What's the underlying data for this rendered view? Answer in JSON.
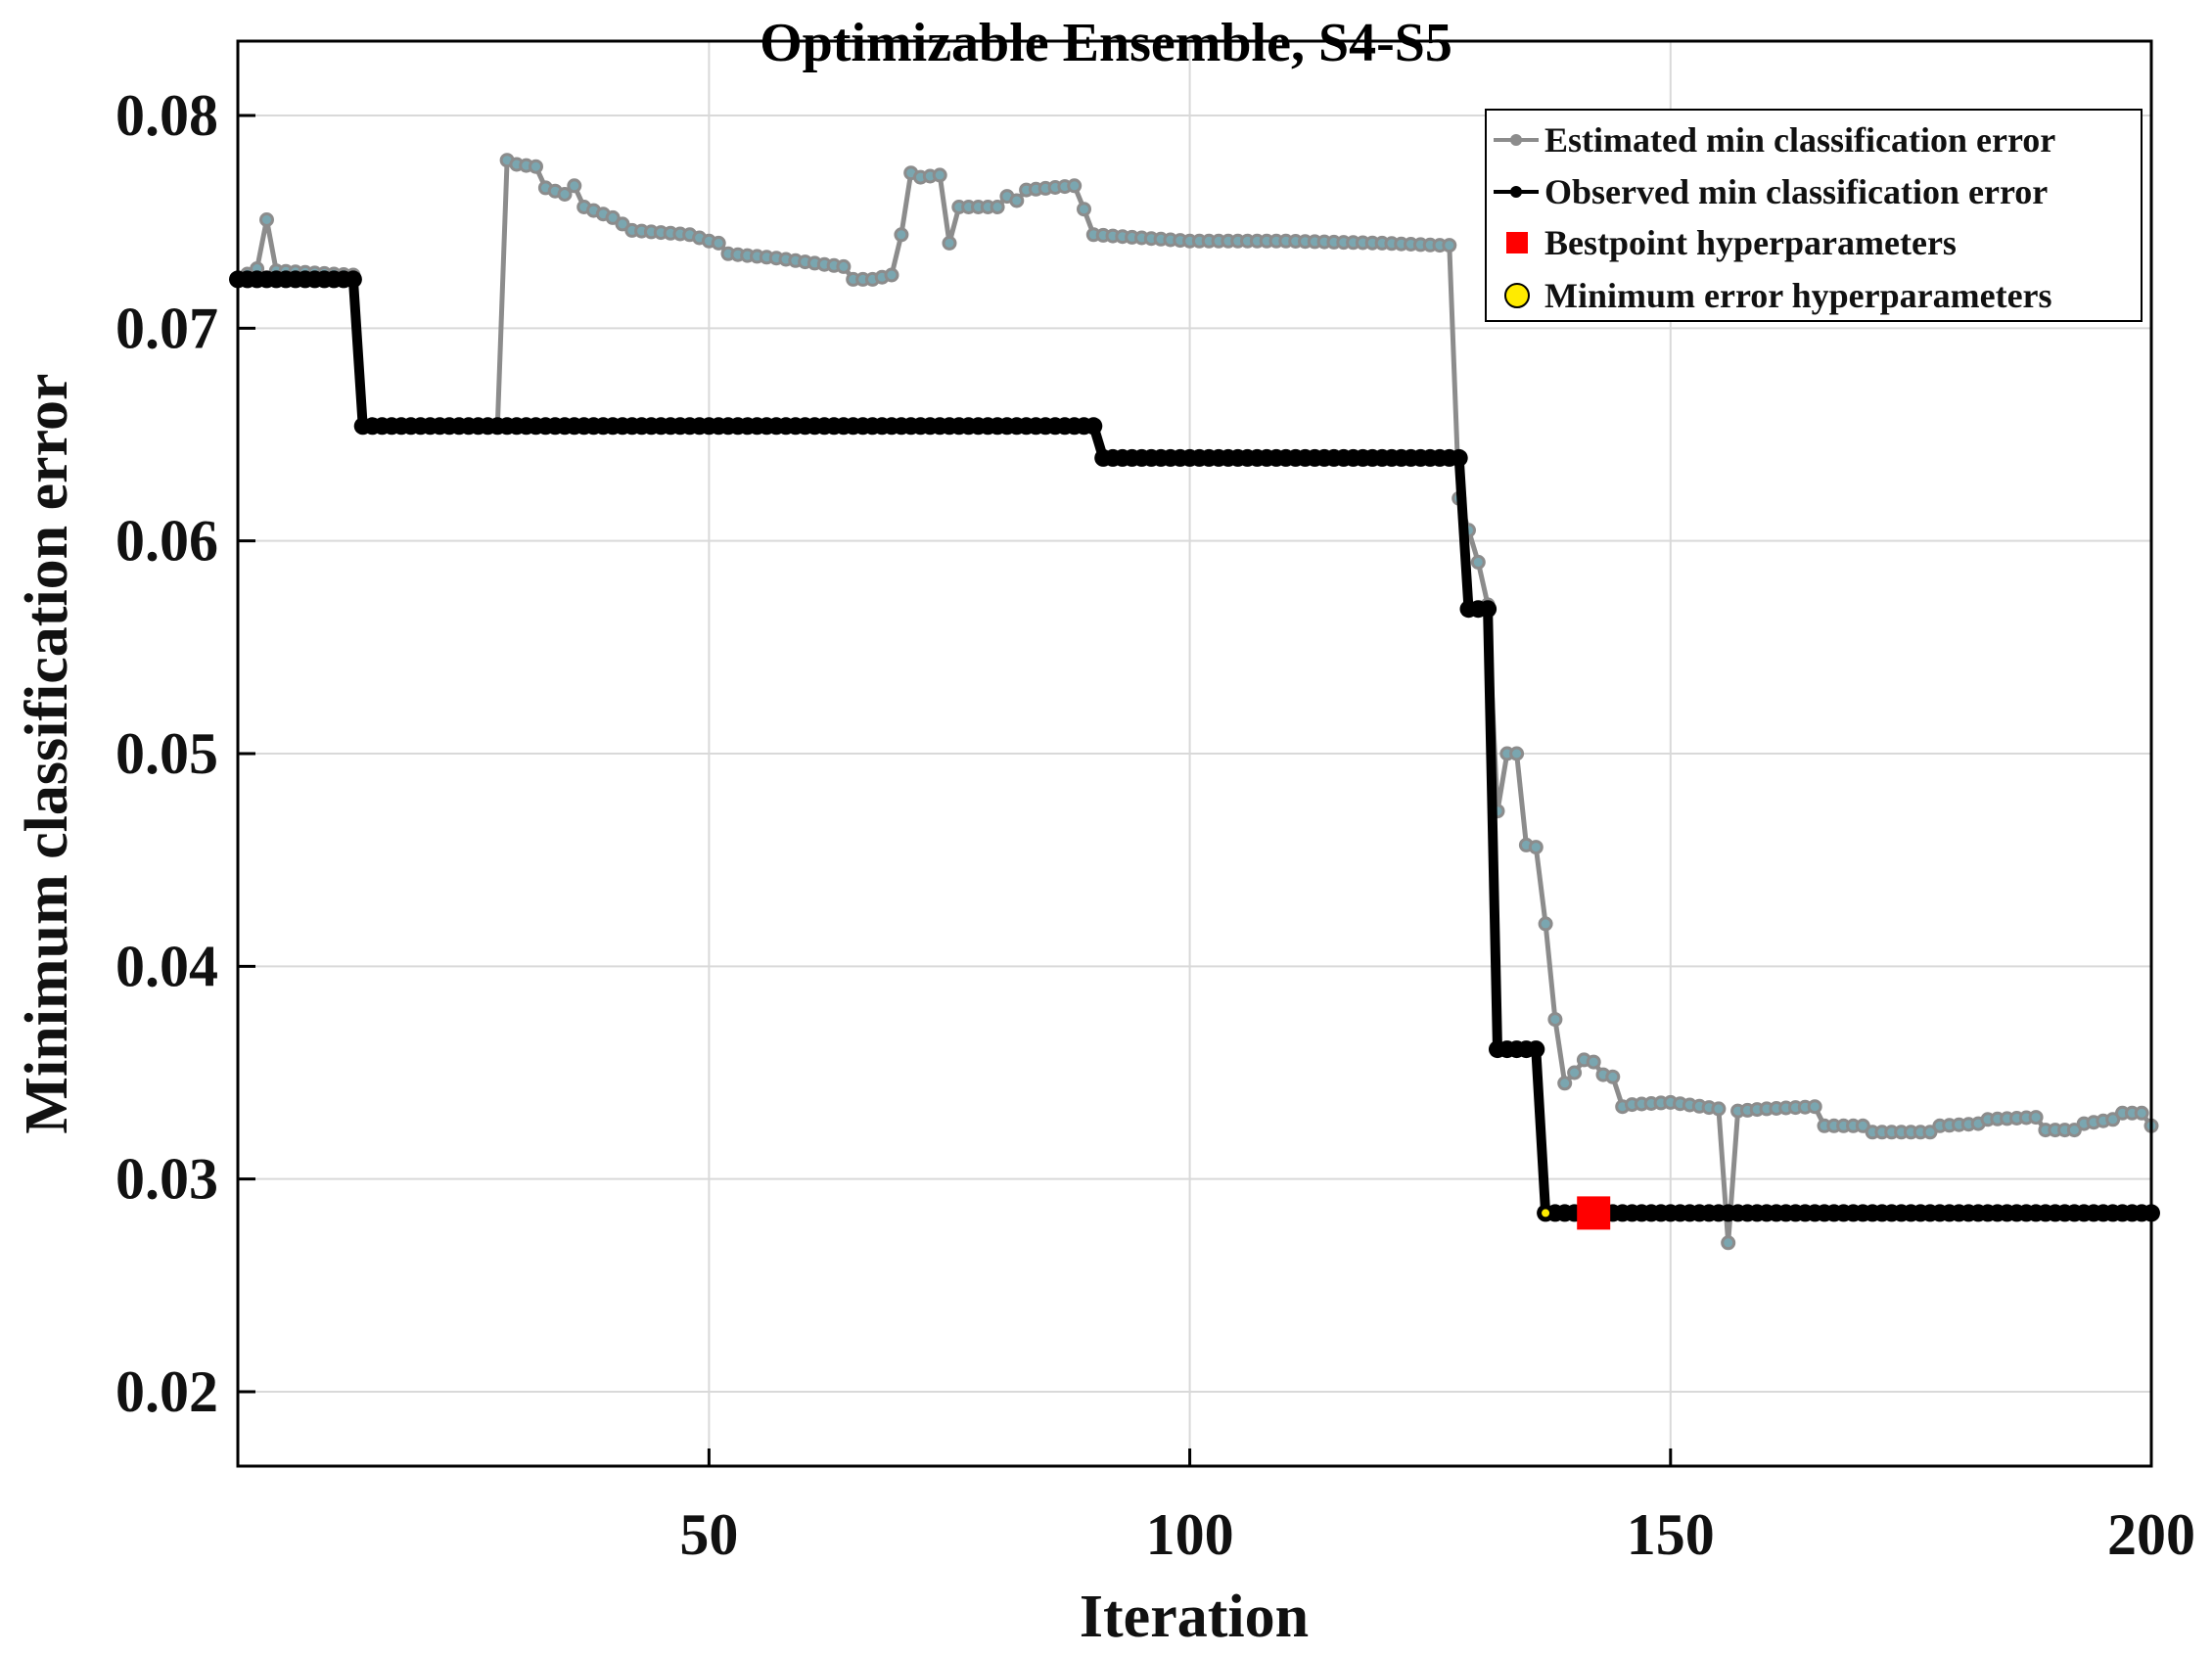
{
  "chart_data": {
    "type": "line",
    "title": "Optimizable Ensemble, S4-S5",
    "xlabel": "Iteration",
    "ylabel": "Minimum classification error",
    "xlim": [
      1,
      200
    ],
    "ylim": [
      0.0165,
      0.0835
    ],
    "xticks": [
      50,
      100,
      150,
      200
    ],
    "yticks": [
      0.02,
      0.03,
      0.04,
      0.05,
      0.06,
      0.07,
      0.08
    ],
    "xtick_labels": [
      "50",
      "100",
      "150",
      "200"
    ],
    "ytick_labels": [
      "0.02",
      "0.03",
      "0.04",
      "0.05",
      "0.06",
      "0.07",
      "0.08"
    ],
    "grid": true,
    "legend_position": "top-right",
    "colors": {
      "estimated": "#8c8c8c",
      "estimated_marker": "#7aa6b0",
      "observed": "#000000",
      "bestpoint": "#ff0000",
      "minimum": "#ffeb00"
    },
    "series": [
      {
        "name": "Estimated min classification error",
        "keypoints": [
          [
            1,
            0.0723
          ],
          [
            3,
            0.0728
          ],
          [
            4,
            0.0751
          ],
          [
            5,
            0.0727
          ],
          [
            13,
            0.0725
          ],
          [
            14,
            0.0654
          ],
          [
            28,
            0.0654
          ],
          [
            29,
            0.0779
          ],
          [
            30,
            0.0777
          ],
          [
            32,
            0.0776
          ],
          [
            33,
            0.0766
          ],
          [
            35,
            0.0763
          ],
          [
            36,
            0.0767
          ],
          [
            37,
            0.0757
          ],
          [
            40,
            0.0752
          ],
          [
            42,
            0.0746
          ],
          [
            48,
            0.0744
          ],
          [
            50,
            0.0741
          ],
          [
            51,
            0.074
          ],
          [
            52,
            0.0735
          ],
          [
            57,
            0.0733
          ],
          [
            62,
            0.073
          ],
          [
            64,
            0.0729
          ],
          [
            65,
            0.0723
          ],
          [
            67,
            0.0723
          ],
          [
            69,
            0.0725
          ],
          [
            70,
            0.0744
          ],
          [
            71,
            0.0773
          ],
          [
            72,
            0.0771
          ],
          [
            74,
            0.0772
          ],
          [
            75,
            0.074
          ],
          [
            76,
            0.0757
          ],
          [
            80,
            0.0757
          ],
          [
            81,
            0.0762
          ],
          [
            82,
            0.076
          ],
          [
            83,
            0.0765
          ],
          [
            88,
            0.0767
          ],
          [
            89,
            0.0756
          ],
          [
            90,
            0.0744
          ],
          [
            100,
            0.0741
          ],
          [
            110,
            0.0741
          ],
          [
            120,
            0.074
          ],
          [
            126,
            0.0739
          ],
          [
            127,
            0.0739
          ],
          [
            128,
            0.062
          ],
          [
            129,
            0.0605
          ],
          [
            130,
            0.059
          ],
          [
            131,
            0.057
          ],
          [
            132,
            0.0473
          ],
          [
            133,
            0.05
          ],
          [
            134,
            0.05
          ],
          [
            135,
            0.0457
          ],
          [
            136,
            0.0456
          ],
          [
            137,
            0.042
          ],
          [
            138,
            0.0375
          ],
          [
            139,
            0.0345
          ],
          [
            140,
            0.035
          ],
          [
            141,
            0.0356
          ],
          [
            142,
            0.0355
          ],
          [
            143,
            0.0349
          ],
          [
            144,
            0.0348
          ],
          [
            145,
            0.0334
          ],
          [
            146,
            0.0335
          ],
          [
            150,
            0.0336
          ],
          [
            155,
            0.0333
          ],
          [
            156,
            0.027
          ],
          [
            157,
            0.0332
          ],
          [
            160,
            0.0333
          ],
          [
            165,
            0.0334
          ],
          [
            166,
            0.0325
          ],
          [
            170,
            0.0325
          ],
          [
            171,
            0.0322
          ],
          [
            177,
            0.0322
          ],
          [
            178,
            0.0325
          ],
          [
            182,
            0.0326
          ],
          [
            183,
            0.0328
          ],
          [
            188,
            0.0329
          ],
          [
            189,
            0.0323
          ],
          [
            192,
            0.0323
          ],
          [
            193,
            0.0326
          ],
          [
            196,
            0.0328
          ],
          [
            197,
            0.0331
          ],
          [
            199,
            0.0331
          ],
          [
            200,
            0.0325
          ]
        ]
      },
      {
        "name": "Observed min classification error",
        "steps": [
          [
            1,
            0.0723
          ],
          [
            14,
            0.0654
          ],
          [
            91,
            0.0639
          ],
          [
            129,
            0.0568
          ],
          [
            132,
            0.0361
          ],
          [
            137,
            0.0284
          ],
          [
            200,
            0.0284
          ]
        ]
      }
    ],
    "markers": [
      {
        "name": "Bestpoint hyperparameters",
        "x": 142,
        "y": 0.0284,
        "shape": "square"
      },
      {
        "name": "Minimum error hyperparameters",
        "x": 137,
        "y": 0.0284,
        "shape": "circle"
      }
    ]
  }
}
